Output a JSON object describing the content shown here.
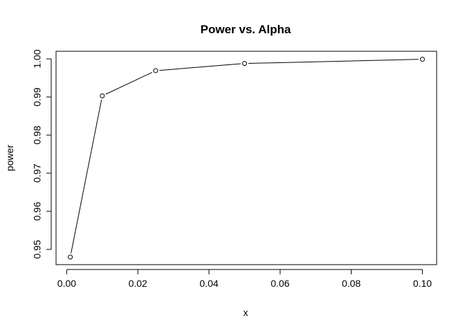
{
  "chart_data": {
    "type": "line",
    "title": "Power vs. Alpha",
    "xlabel": "x",
    "ylabel": "power",
    "x": [
      0.001,
      0.01,
      0.025,
      0.05,
      0.1
    ],
    "y": [
      0.948,
      0.9903,
      0.9969,
      0.9988,
      0.9999
    ],
    "xlim": [
      -0.003,
      0.104
    ],
    "ylim": [
      0.946,
      1.002
    ],
    "x_ticks": [
      0.0,
      0.02,
      0.04,
      0.06,
      0.08,
      0.1
    ],
    "x_tick_labels": [
      "0.00",
      "0.02",
      "0.04",
      "0.06",
      "0.08",
      "0.10"
    ],
    "y_ticks": [
      0.95,
      0.96,
      0.97,
      0.98,
      0.99,
      1.0
    ],
    "y_tick_labels": [
      "0.95",
      "0.96",
      "0.97",
      "0.98",
      "0.99",
      "1.00"
    ],
    "markers": "open-circle",
    "grid": false,
    "line_color": "#000000"
  }
}
